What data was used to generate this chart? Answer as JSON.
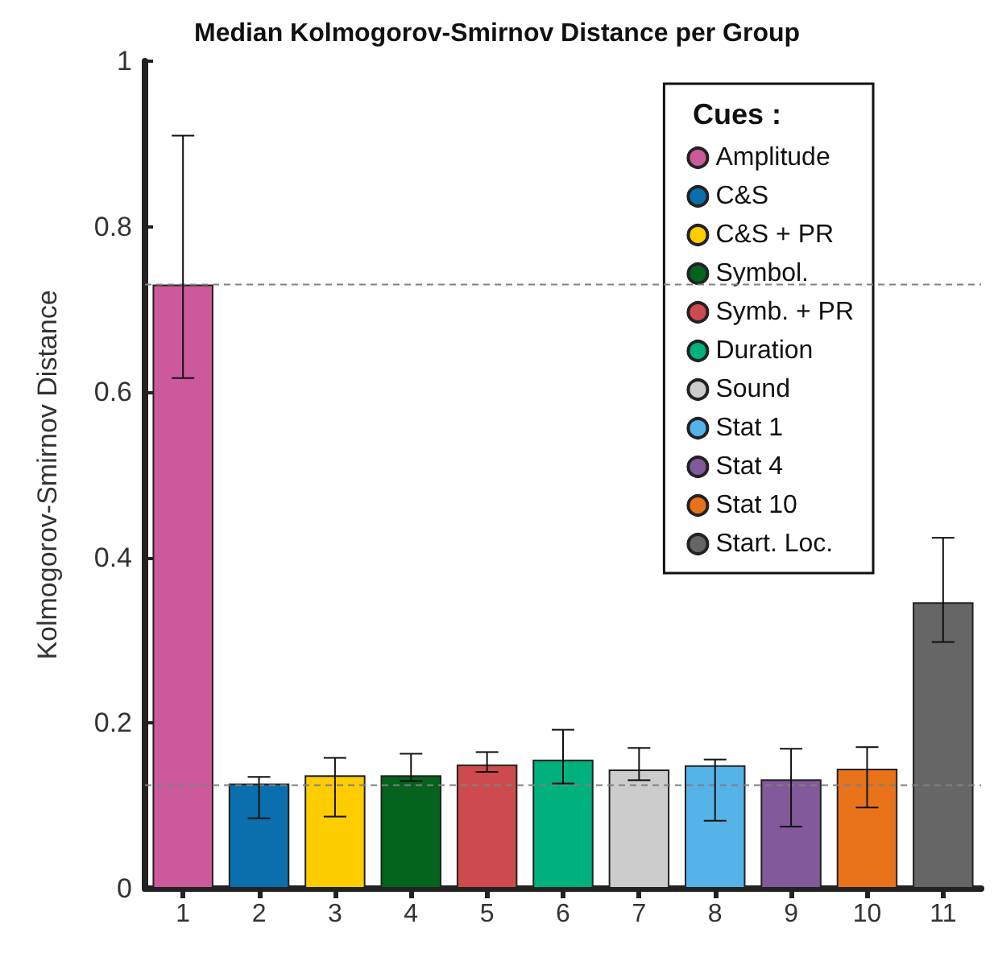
{
  "chart_data": {
    "type": "bar",
    "title": "Median Kolmogorov-Smirnov Distance per Group",
    "ylabel": "Kolmogorov-Smirnov Distance",
    "legend_title": "Cues :",
    "legend": "top right",
    "grid": false,
    "categories": [
      "1",
      "2",
      "3",
      "4",
      "5",
      "6",
      "7",
      "8",
      "9",
      "10",
      "11"
    ],
    "ylim": [
      0,
      1
    ],
    "yticks": [
      0,
      0.2,
      0.4,
      0.6,
      0.8,
      1
    ],
    "ref_lines": [
      {
        "axis": "y",
        "value": 0.73,
        "color": "#808080",
        "line_style": "dashed"
      },
      {
        "axis": "y",
        "value": 0.125,
        "color": "#808080",
        "line_style": "dashed"
      }
    ],
    "series": [
      {
        "name": "Amplitude",
        "color": "#cc5a9a",
        "values": [
          0.73,
          null,
          null,
          null,
          null,
          null,
          null,
          null,
          null,
          null,
          null
        ],
        "errors": [
          [
            0.617,
            0.91
          ],
          null,
          null,
          null,
          null,
          null,
          null,
          null,
          null,
          null,
          null
        ]
      },
      {
        "name": "C&S",
        "color": "#0b6fae",
        "values": [
          null,
          0.127,
          null,
          null,
          null,
          null,
          null,
          null,
          null,
          null,
          null
        ],
        "errors": [
          null,
          [
            0.085,
            0.135
          ],
          null,
          null,
          null,
          null,
          null,
          null,
          null,
          null,
          null
        ]
      },
      {
        "name": "C&S + PR",
        "color": "#fecd00",
        "values": [
          null,
          null,
          0.137,
          null,
          null,
          null,
          null,
          null,
          null,
          null,
          null
        ],
        "errors": [
          null,
          null,
          [
            0.087,
            0.158
          ],
          null,
          null,
          null,
          null,
          null,
          null,
          null,
          null
        ]
      },
      {
        "name": "Symbol.",
        "color": "#04631d",
        "values": [
          null,
          null,
          null,
          0.137,
          null,
          null,
          null,
          null,
          null,
          null,
          null
        ],
        "errors": [
          null,
          null,
          null,
          [
            0.13,
            0.163
          ],
          null,
          null,
          null,
          null,
          null,
          null,
          null
        ]
      },
      {
        "name": "Symb. + PR",
        "color": "#cd4b4e",
        "values": [
          null,
          null,
          null,
          null,
          0.15,
          null,
          null,
          null,
          null,
          null,
          null
        ],
        "errors": [
          null,
          null,
          null,
          null,
          [
            0.141,
            0.165
          ],
          null,
          null,
          null,
          null,
          null,
          null
        ]
      },
      {
        "name": "Duration",
        "color": "#00b07d",
        "values": [
          null,
          null,
          null,
          null,
          null,
          0.156,
          null,
          null,
          null,
          null,
          null
        ],
        "errors": [
          null,
          null,
          null,
          null,
          null,
          [
            0.127,
            0.192
          ],
          null,
          null,
          null,
          null,
          null
        ]
      },
      {
        "name": "Sound",
        "color": "#cccccc",
        "values": [
          null,
          null,
          null,
          null,
          null,
          null,
          0.144,
          null,
          null,
          null,
          null
        ],
        "errors": [
          null,
          null,
          null,
          null,
          null,
          null,
          [
            0.131,
            0.17
          ],
          null,
          null,
          null,
          null
        ]
      },
      {
        "name": "Stat 1",
        "color": "#56b3e8",
        "values": [
          null,
          null,
          null,
          null,
          null,
          null,
          null,
          0.149,
          null,
          null,
          null
        ],
        "errors": [
          null,
          null,
          null,
          null,
          null,
          null,
          null,
          [
            0.082,
            0.156
          ],
          null,
          null,
          null
        ]
      },
      {
        "name": "Stat 4",
        "color": "#825a9a",
        "values": [
          null,
          null,
          null,
          null,
          null,
          null,
          null,
          null,
          0.132,
          null,
          null
        ],
        "errors": [
          null,
          null,
          null,
          null,
          null,
          null,
          null,
          null,
          [
            0.075,
            0.169
          ],
          null,
          null
        ]
      },
      {
        "name": "Stat 10",
        "color": "#e8731b",
        "values": [
          null,
          null,
          null,
          null,
          null,
          null,
          null,
          null,
          null,
          0.145,
          null
        ],
        "errors": [
          null,
          null,
          null,
          null,
          null,
          null,
          null,
          null,
          null,
          [
            0.098,
            0.171
          ],
          null
        ]
      },
      {
        "name": "Start. Loc.",
        "color": "#666666",
        "values": [
          null,
          null,
          null,
          null,
          null,
          null,
          null,
          null,
          null,
          null,
          0.346
        ],
        "errors": [
          null,
          null,
          null,
          null,
          null,
          null,
          null,
          null,
          null,
          null,
          [
            0.298,
            0.424
          ]
        ]
      }
    ]
  }
}
